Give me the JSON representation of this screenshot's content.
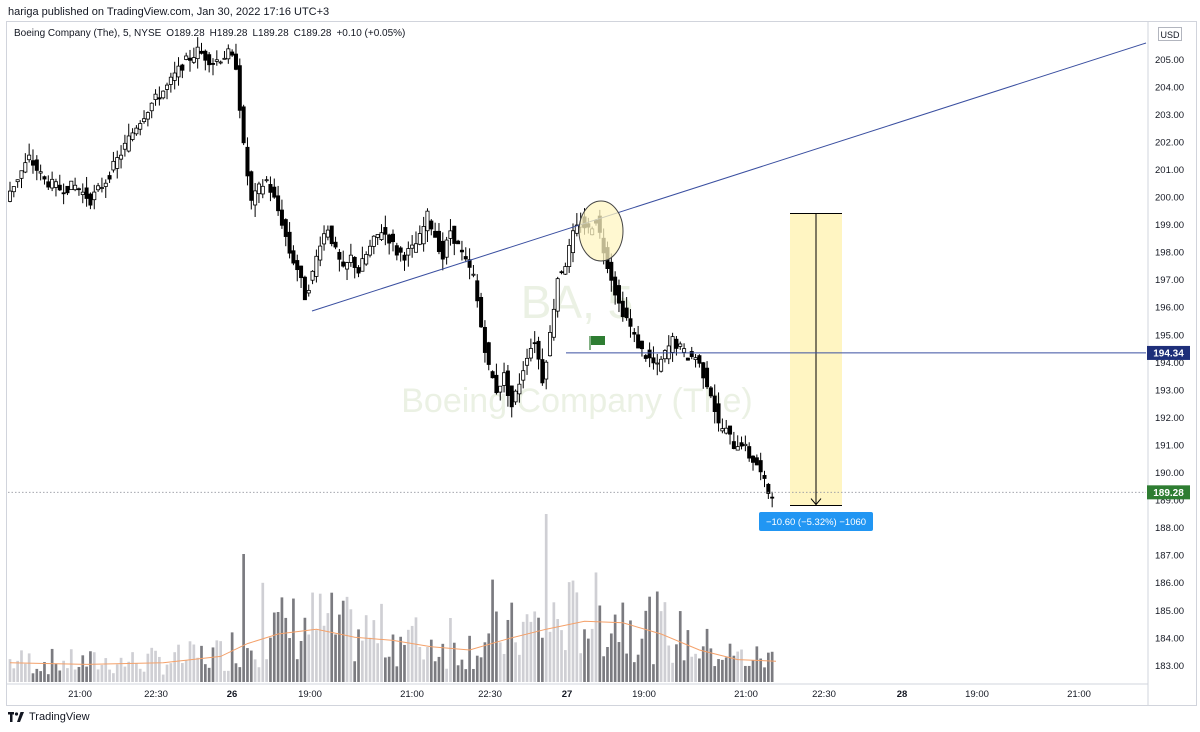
{
  "header": {
    "published_line": "hariga published on TradingView.com, Jan 30, 2022 17:16 UTC+3"
  },
  "legend": {
    "symbol": "Boeing Company (The), 5, NYSE",
    "open": "O189.28",
    "high": "H189.28",
    "low": "L189.28",
    "close": "C189.28",
    "change": "+0.10 (+0.05%)"
  },
  "currency": "USD",
  "watermark": {
    "ticker": "BA, 5",
    "name": "Boeing Company (The)"
  },
  "footer": {
    "brand": "TradingView"
  },
  "colors": {
    "candle": "#000000",
    "trendline": "#3a4fa0",
    "price_line": "#3a4fa0",
    "price_line_label_bg": "#1e2f7a",
    "last_price_bg": "#2e7d32",
    "measure_fill": "#fff5c2",
    "measure_badge_bg": "#2196f3",
    "volume_up": "#cfcfd4",
    "volume_down": "#7b7b80",
    "volume_ma": "#f4a16a",
    "ellipse_fill": "#fff5c2",
    "flag": "#2e7d32"
  },
  "price_labels": {
    "horizontal_line": "194.34",
    "last_price": "189.28"
  },
  "measure_label": "−10.60 (−5.32%) −1060",
  "chart_data": {
    "type": "candlestick",
    "title": "Boeing Company (The), 5, NYSE",
    "ylim": [
      182.5,
      206.0
    ],
    "y_ticks": [
      "183.00",
      "184.00",
      "185.00",
      "186.00",
      "187.00",
      "188.00",
      "189.00",
      "190.00",
      "191.00",
      "192.00",
      "193.00",
      "194.00",
      "195.00",
      "196.00",
      "197.00",
      "198.00",
      "199.00",
      "200.00",
      "201.00",
      "202.00",
      "203.00",
      "204.00",
      "205.00"
    ],
    "x_ticks": [
      "21:00",
      "22:30",
      "26",
      "19:00",
      "21:00",
      "22:30",
      "27",
      "19:00",
      "21:00",
      "22:30",
      "28",
      "19:00",
      "21:00"
    ],
    "price_path": [
      [
        0,
        200.0
      ],
      [
        6,
        201.4
      ],
      [
        10,
        200.6
      ],
      [
        14,
        200.3
      ],
      [
        18,
        200.4
      ],
      [
        22,
        199.9
      ],
      [
        26,
        200.6
      ],
      [
        30,
        201.6
      ],
      [
        34,
        202.6
      ],
      [
        38,
        203.4
      ],
      [
        42,
        204.0
      ],
      [
        46,
        204.8
      ],
      [
        50,
        205.3
      ],
      [
        54,
        204.9
      ],
      [
        58,
        205.2
      ],
      [
        60,
        204.8
      ],
      [
        62,
        201.8
      ],
      [
        64,
        199.8
      ],
      [
        66,
        200.3
      ],
      [
        68,
        200.6
      ],
      [
        70,
        199.9
      ],
      [
        72,
        199.1
      ],
      [
        74,
        198.0
      ],
      [
        76,
        197.4
      ],
      [
        78,
        196.4
      ],
      [
        80,
        197.2
      ],
      [
        82,
        198.4
      ],
      [
        84,
        198.9
      ],
      [
        86,
        198.0
      ],
      [
        88,
        197.3
      ],
      [
        90,
        197.8
      ],
      [
        92,
        197.3
      ],
      [
        94,
        197.9
      ],
      [
        96,
        198.4
      ],
      [
        98,
        198.8
      ],
      [
        100,
        198.5
      ],
      [
        102,
        198.0
      ],
      [
        104,
        197.9
      ],
      [
        106,
        198.1
      ],
      [
        108,
        198.5
      ],
      [
        110,
        199.3
      ],
      [
        112,
        198.6
      ],
      [
        114,
        197.8
      ],
      [
        116,
        198.8
      ],
      [
        118,
        198.2
      ],
      [
        120,
        197.6
      ],
      [
        122,
        197.1
      ],
      [
        124,
        195.3
      ],
      [
        126,
        193.8
      ],
      [
        128,
        193.0
      ],
      [
        130,
        193.5
      ],
      [
        132,
        192.4
      ],
      [
        134,
        193.3
      ],
      [
        136,
        194.3
      ],
      [
        138,
        194.8
      ],
      [
        140,
        193.4
      ],
      [
        142,
        195.0
      ],
      [
        144,
        197.1
      ],
      [
        146,
        197.6
      ],
      [
        148,
        198.6
      ],
      [
        150,
        199.1
      ],
      [
        152,
        198.8
      ],
      [
        154,
        199.2
      ],
      [
        156,
        198.1
      ],
      [
        158,
        197.1
      ],
      [
        160,
        196.1
      ],
      [
        162,
        195.6
      ],
      [
        164,
        194.9
      ],
      [
        166,
        194.4
      ],
      [
        168,
        194.1
      ],
      [
        170,
        193.8
      ],
      [
        172,
        194.3
      ],
      [
        174,
        194.8
      ],
      [
        176,
        194.5
      ],
      [
        178,
        194.2
      ],
      [
        180,
        194.2
      ],
      [
        182,
        193.6
      ],
      [
        184,
        192.9
      ],
      [
        186,
        191.7
      ],
      [
        188,
        191.5
      ],
      [
        190,
        191.0
      ],
      [
        192,
        191.1
      ],
      [
        194,
        190.6
      ],
      [
        196,
        190.3
      ],
      [
        198,
        189.6
      ],
      [
        199,
        189.3
      ],
      [
        200,
        189.28
      ]
    ],
    "volume_ma_path": [
      [
        0,
        1.2
      ],
      [
        20,
        1.1
      ],
      [
        40,
        1.2
      ],
      [
        55,
        1.6
      ],
      [
        62,
        2.4
      ],
      [
        70,
        3.0
      ],
      [
        80,
        3.3
      ],
      [
        90,
        2.8
      ],
      [
        100,
        2.6
      ],
      [
        110,
        2.2
      ],
      [
        120,
        2.0
      ],
      [
        130,
        2.7
      ],
      [
        140,
        3.3
      ],
      [
        150,
        3.8
      ],
      [
        160,
        3.7
      ],
      [
        170,
        3.0
      ],
      [
        180,
        2.0
      ],
      [
        190,
        1.4
      ],
      [
        200,
        1.3
      ]
    ],
    "volume_spikes": [
      [
        61,
        8.0
      ],
      [
        126,
        6.4
      ],
      [
        140,
        10.5
      ],
      [
        66,
        6.2
      ],
      [
        148,
        5.6
      ],
      [
        115,
        4.0
      ],
      [
        183,
        2.1
      ]
    ],
    "trendline": [
      [
        196.0,
        0
      ],
      [
        205.7,
        0
      ]
    ],
    "horizontal_level": 194.34,
    "measure": {
      "from": 199.4,
      "to": 188.8,
      "change": -10.6,
      "percent": -5.32,
      "ticks": -1060
    },
    "last_price": 189.28
  }
}
